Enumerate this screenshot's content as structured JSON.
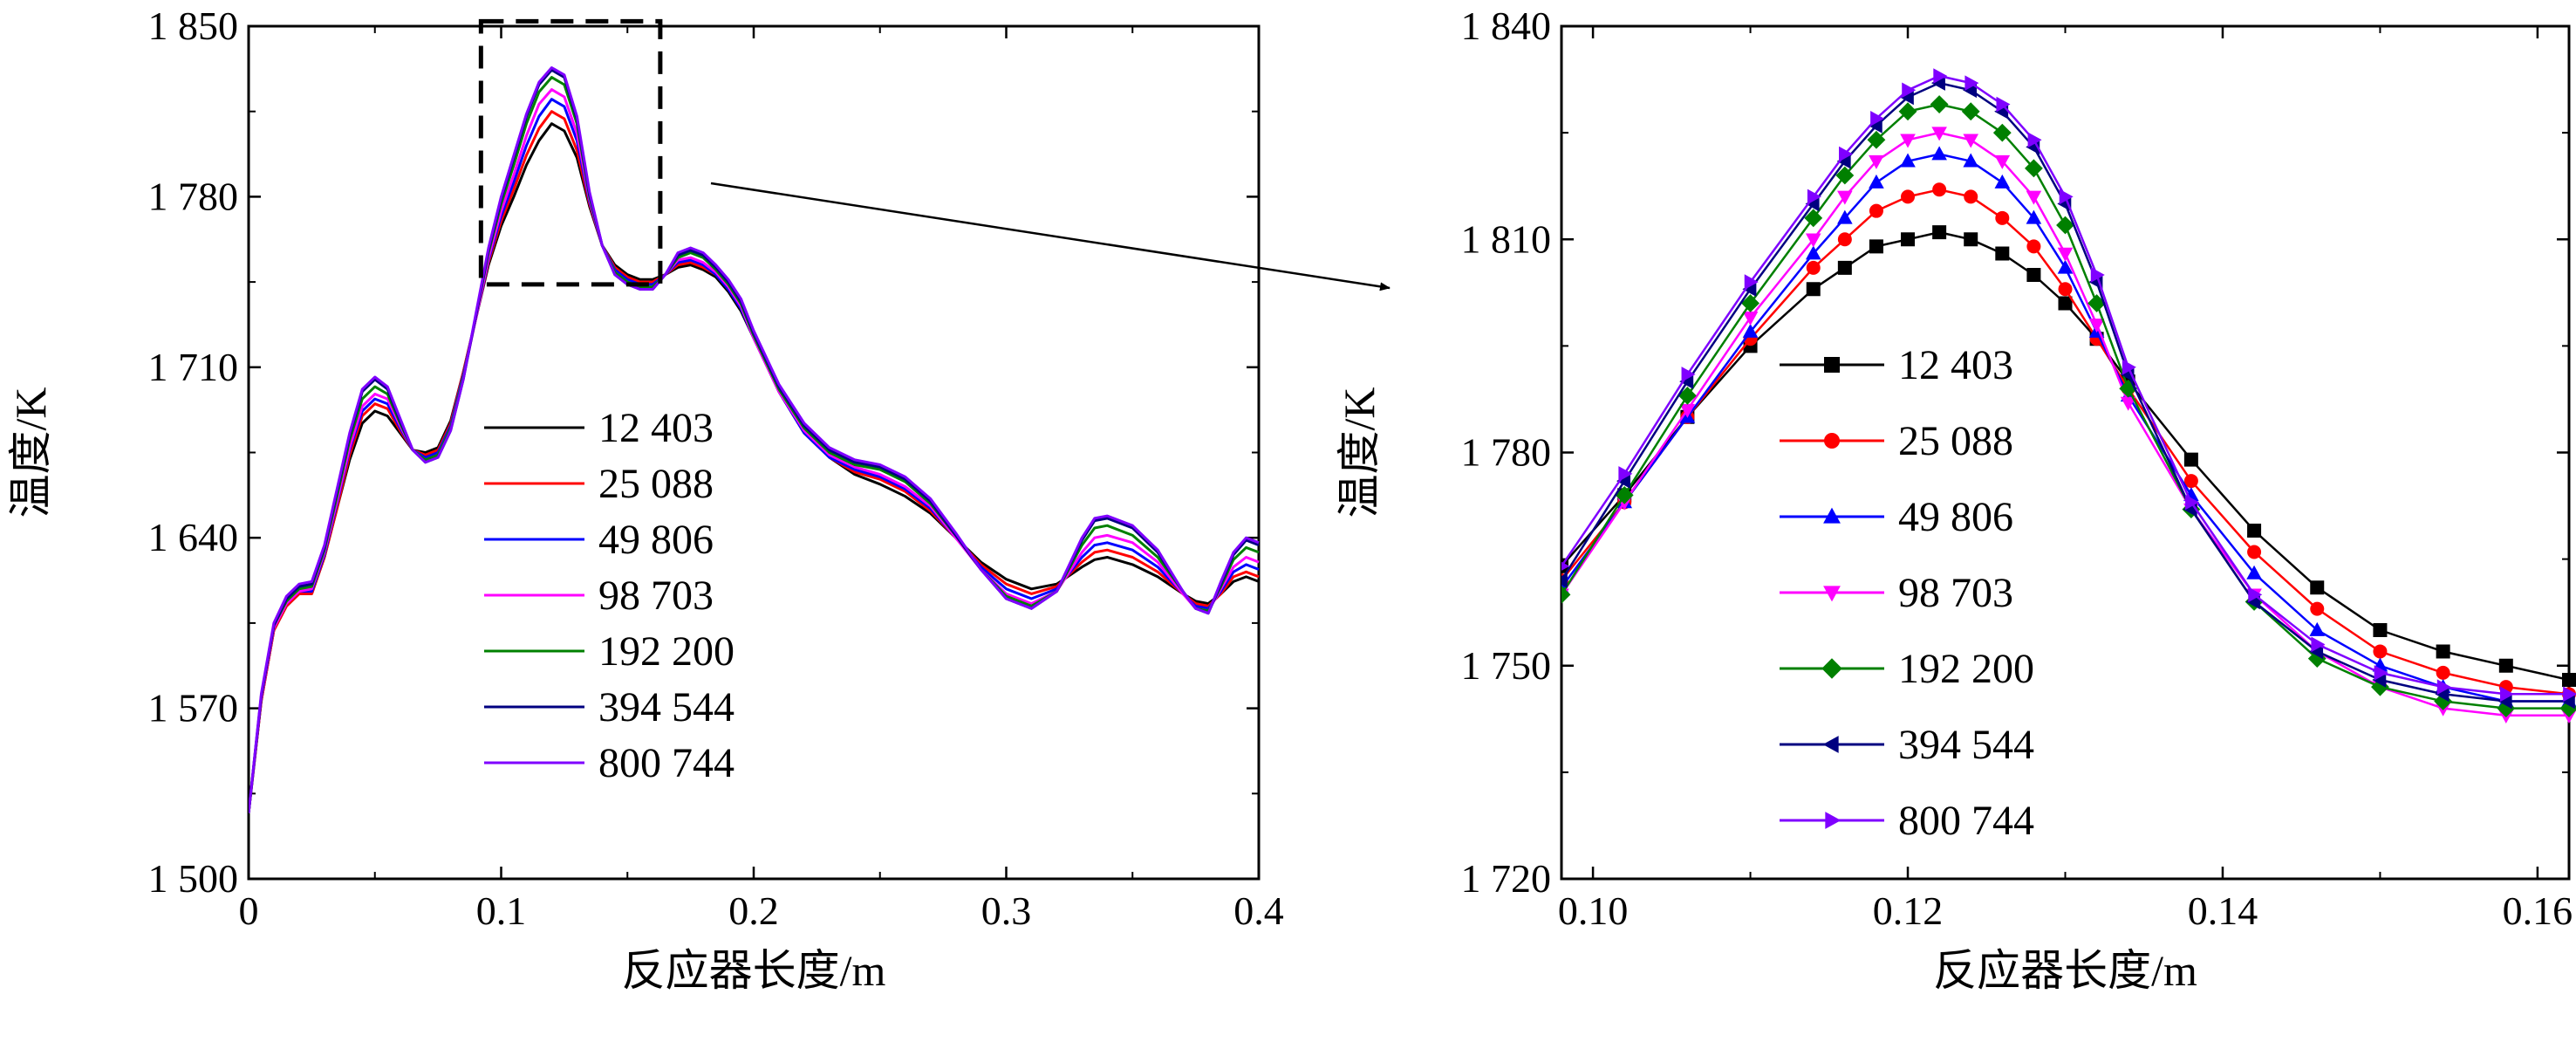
{
  "chart_data": [
    {
      "type": "line",
      "xlabel": "反应器长度/m",
      "ylabel": "温度/K",
      "xlim": [
        0,
        0.4
      ],
      "ylim": [
        1500,
        1850
      ],
      "xticks": [
        0,
        0.1,
        0.2,
        0.3,
        0.4
      ],
      "xtick_labels": [
        "0",
        "0.1",
        "0.2",
        "0.3",
        "0.4"
      ],
      "yticks": [
        1500,
        1570,
        1640,
        1710,
        1780,
        1850
      ],
      "ytick_labels": [
        "1 500",
        "1 570",
        "1 640",
        "1 710",
        "1 780",
        "1 850"
      ],
      "grid": false,
      "legend_position": "center",
      "zoom_box": {
        "x": [
          0.092,
          0.163
        ],
        "y": [
          1744,
          1852
        ]
      },
      "x": [
        0,
        0.005,
        0.01,
        0.015,
        0.02,
        0.025,
        0.03,
        0.035,
        0.04,
        0.045,
        0.05,
        0.055,
        0.06,
        0.065,
        0.07,
        0.075,
        0.08,
        0.085,
        0.09,
        0.095,
        0.1,
        0.105,
        0.11,
        0.115,
        0.12,
        0.125,
        0.13,
        0.135,
        0.14,
        0.145,
        0.15,
        0.155,
        0.16,
        0.165,
        0.17,
        0.175,
        0.18,
        0.185,
        0.19,
        0.195,
        0.2,
        0.21,
        0.22,
        0.23,
        0.24,
        0.25,
        0.26,
        0.27,
        0.28,
        0.29,
        0.3,
        0.31,
        0.32,
        0.33,
        0.335,
        0.34,
        0.35,
        0.36,
        0.37,
        0.375,
        0.38,
        0.385,
        0.39,
        0.395,
        0.4
      ],
      "series": [
        {
          "name": "12 403",
          "color": "#000000",
          "values": [
            1527,
            1573,
            1602,
            1612,
            1617,
            1617,
            1632,
            1652,
            1672,
            1687,
            1692,
            1690,
            1683,
            1676,
            1675,
            1677,
            1688,
            1708,
            1730,
            1752,
            1768,
            1780,
            1793,
            1803,
            1810,
            1807,
            1796,
            1776,
            1760,
            1752,
            1748,
            1746,
            1746,
            1748,
            1751,
            1752,
            1750,
            1747,
            1741,
            1733,
            1722,
            1700,
            1683,
            1673,
            1666,
            1662,
            1657,
            1650,
            1640,
            1630,
            1623,
            1619,
            1621,
            1628,
            1631,
            1632,
            1629,
            1624,
            1617,
            1614,
            1613,
            1617,
            1622,
            1624,
            1622
          ]
        },
        {
          "name": "25 088",
          "color": "#ff0000",
          "values": [
            1527,
            1573,
            1602,
            1612,
            1617,
            1617,
            1632,
            1652,
            1674,
            1690,
            1695,
            1693,
            1684,
            1676,
            1674,
            1676,
            1687,
            1708,
            1730,
            1753,
            1770,
            1783,
            1797,
            1808,
            1815,
            1812,
            1799,
            1777,
            1760,
            1751,
            1747,
            1745,
            1745,
            1748,
            1752,
            1753,
            1751,
            1748,
            1742,
            1734,
            1722,
            1700,
            1683,
            1673,
            1667,
            1664,
            1659,
            1651,
            1640,
            1629,
            1621,
            1617,
            1620,
            1630,
            1634,
            1635,
            1632,
            1626,
            1617,
            1613,
            1612,
            1617,
            1624,
            1626,
            1624
          ]
        },
        {
          "name": "49 806",
          "color": "#0000ff",
          "values": [
            1527,
            1574,
            1603,
            1613,
            1618,
            1618,
            1633,
            1654,
            1676,
            1692,
            1697,
            1695,
            1685,
            1676,
            1673,
            1675,
            1686,
            1707,
            1730,
            1754,
            1772,
            1786,
            1801,
            1813,
            1820,
            1817,
            1803,
            1778,
            1760,
            1750,
            1746,
            1744,
            1744,
            1748,
            1753,
            1754,
            1752,
            1748,
            1742,
            1734,
            1722,
            1700,
            1683,
            1673,
            1668,
            1665,
            1660,
            1652,
            1640,
            1628,
            1619,
            1615,
            1619,
            1632,
            1637,
            1638,
            1635,
            1628,
            1617,
            1612,
            1611,
            1618,
            1626,
            1629,
            1627
          ]
        },
        {
          "name": "98 703",
          "color": "#ff00ff",
          "values": [
            1527,
            1574,
            1603,
            1613,
            1618,
            1619,
            1634,
            1655,
            1677,
            1694,
            1699,
            1697,
            1686,
            1676,
            1672,
            1674,
            1685,
            1706,
            1730,
            1755,
            1774,
            1789,
            1805,
            1818,
            1824,
            1821,
            1806,
            1779,
            1760,
            1749,
            1745,
            1743,
            1743,
            1748,
            1754,
            1755,
            1753,
            1749,
            1743,
            1735,
            1722,
            1700,
            1684,
            1674,
            1669,
            1666,
            1661,
            1653,
            1640,
            1627,
            1617,
            1613,
            1618,
            1634,
            1640,
            1641,
            1638,
            1630,
            1617,
            1611,
            1610,
            1619,
            1628,
            1632,
            1630
          ]
        },
        {
          "name": "192 200",
          "color": "#008000",
          "values": [
            1527,
            1575,
            1604,
            1614,
            1619,
            1620,
            1635,
            1657,
            1680,
            1697,
            1702,
            1699,
            1687,
            1676,
            1672,
            1674,
            1685,
            1706,
            1731,
            1757,
            1777,
            1793,
            1810,
            1823,
            1829,
            1826,
            1810,
            1780,
            1760,
            1749,
            1745,
            1743,
            1743,
            1748,
            1755,
            1757,
            1755,
            1750,
            1744,
            1736,
            1723,
            1701,
            1685,
            1675,
            1670,
            1668,
            1663,
            1654,
            1641,
            1627,
            1616,
            1612,
            1618,
            1637,
            1644,
            1645,
            1641,
            1632,
            1618,
            1611,
            1610,
            1620,
            1631,
            1636,
            1634
          ]
        },
        {
          "name": "394 544",
          "color": "#000080",
          "values": [
            1527,
            1575,
            1604,
            1615,
            1620,
            1621,
            1636,
            1659,
            1682,
            1700,
            1705,
            1701,
            1688,
            1676,
            1671,
            1673,
            1684,
            1705,
            1731,
            1758,
            1779,
            1796,
            1813,
            1826,
            1832,
            1829,
            1812,
            1781,
            1760,
            1748,
            1744,
            1742,
            1742,
            1748,
            1756,
            1758,
            1756,
            1751,
            1745,
            1737,
            1724,
            1702,
            1686,
            1676,
            1671,
            1669,
            1664,
            1655,
            1641,
            1627,
            1615,
            1611,
            1618,
            1639,
            1647,
            1648,
            1644,
            1634,
            1618,
            1611,
            1609,
            1621,
            1633,
            1639,
            1637
          ]
        },
        {
          "name": "800 744",
          "color": "#7f00ff",
          "values": [
            1527,
            1576,
            1605,
            1616,
            1621,
            1622,
            1637,
            1660,
            1683,
            1701,
            1706,
            1702,
            1689,
            1676,
            1671,
            1673,
            1684,
            1705,
            1732,
            1759,
            1780,
            1797,
            1814,
            1827,
            1833,
            1830,
            1813,
            1782,
            1760,
            1748,
            1744,
            1742,
            1742,
            1748,
            1757,
            1759,
            1757,
            1752,
            1746,
            1738,
            1725,
            1703,
            1687,
            1677,
            1672,
            1670,
            1665,
            1656,
            1642,
            1627,
            1615,
            1611,
            1618,
            1640,
            1648,
            1649,
            1645,
            1635,
            1618,
            1611,
            1609,
            1622,
            1634,
            1640,
            1638
          ]
        }
      ]
    },
    {
      "type": "line",
      "xlabel": "反应器长度/m",
      "ylabel": "温度/K",
      "xlim": [
        0.098,
        0.162
      ],
      "ylim": [
        1720,
        1840
      ],
      "xticks": [
        0.1,
        0.12,
        0.14,
        0.16
      ],
      "xtick_labels": [
        "0.10",
        "0.12",
        "0.14",
        "0.16"
      ],
      "yticks": [
        1720,
        1750,
        1780,
        1810,
        1840
      ],
      "ytick_labels": [
        "1 720",
        "1 750",
        "1 780",
        "1 810",
        "1 840"
      ],
      "grid": false,
      "legend_position": "center",
      "x": [
        0.098,
        0.102,
        0.106,
        0.11,
        0.114,
        0.116,
        0.118,
        0.12,
        0.122,
        0.124,
        0.126,
        0.128,
        0.13,
        0.132,
        0.134,
        0.138,
        0.142,
        0.146,
        0.15,
        0.154,
        0.158,
        0.162
      ],
      "series": [
        {
          "name": "12 403",
          "color": "#000000",
          "marker": "square",
          "values": [
            1764,
            1774,
            1785,
            1795,
            1803,
            1806,
            1809,
            1810,
            1811,
            1810,
            1808,
            1805,
            1801,
            1796,
            1790,
            1779,
            1769,
            1761,
            1755,
            1752,
            1750,
            1748
          ]
        },
        {
          "name": "25 088",
          "color": "#ff0000",
          "marker": "circle",
          "values": [
            1762,
            1773,
            1785,
            1796,
            1806,
            1810,
            1814,
            1816,
            1817,
            1816,
            1813,
            1809,
            1803,
            1796,
            1789,
            1776,
            1766,
            1758,
            1752,
            1749,
            1747,
            1746
          ]
        },
        {
          "name": "49 806",
          "color": "#0000ff",
          "marker": "triangle-up",
          "values": [
            1761,
            1773,
            1785,
            1797,
            1808,
            1813,
            1818,
            1821,
            1822,
            1821,
            1818,
            1813,
            1806,
            1797,
            1788,
            1774,
            1763,
            1755,
            1750,
            1747,
            1745,
            1745
          ]
        },
        {
          "name": "98 703",
          "color": "#ff00ff",
          "marker": "triangle-down",
          "values": [
            1760,
            1773,
            1786,
            1799,
            1810,
            1816,
            1821,
            1824,
            1825,
            1824,
            1821,
            1816,
            1808,
            1798,
            1787,
            1772,
            1760,
            1752,
            1747,
            1744,
            1743,
            1743
          ]
        },
        {
          "name": "192 200",
          "color": "#008000",
          "marker": "diamond",
          "values": [
            1760,
            1774,
            1788,
            1801,
            1813,
            1819,
            1824,
            1828,
            1829,
            1828,
            1825,
            1820,
            1812,
            1801,
            1789,
            1772,
            1759,
            1751,
            1747,
            1745,
            1744,
            1744
          ]
        },
        {
          "name": "394 544",
          "color": "#000080",
          "marker": "triangle-left",
          "values": [
            1762,
            1776,
            1790,
            1803,
            1815,
            1821,
            1826,
            1830,
            1832,
            1831,
            1828,
            1823,
            1815,
            1804,
            1791,
            1772,
            1759,
            1752,
            1748,
            1746,
            1745,
            1745
          ]
        },
        {
          "name": "800 744",
          "color": "#7f00ff",
          "marker": "triangle-right",
          "values": [
            1764,
            1777,
            1791,
            1804,
            1816,
            1822,
            1827,
            1831,
            1833,
            1832,
            1829,
            1824,
            1816,
            1805,
            1792,
            1773,
            1760,
            1753,
            1749,
            1747,
            1746,
            1746
          ]
        }
      ]
    }
  ]
}
